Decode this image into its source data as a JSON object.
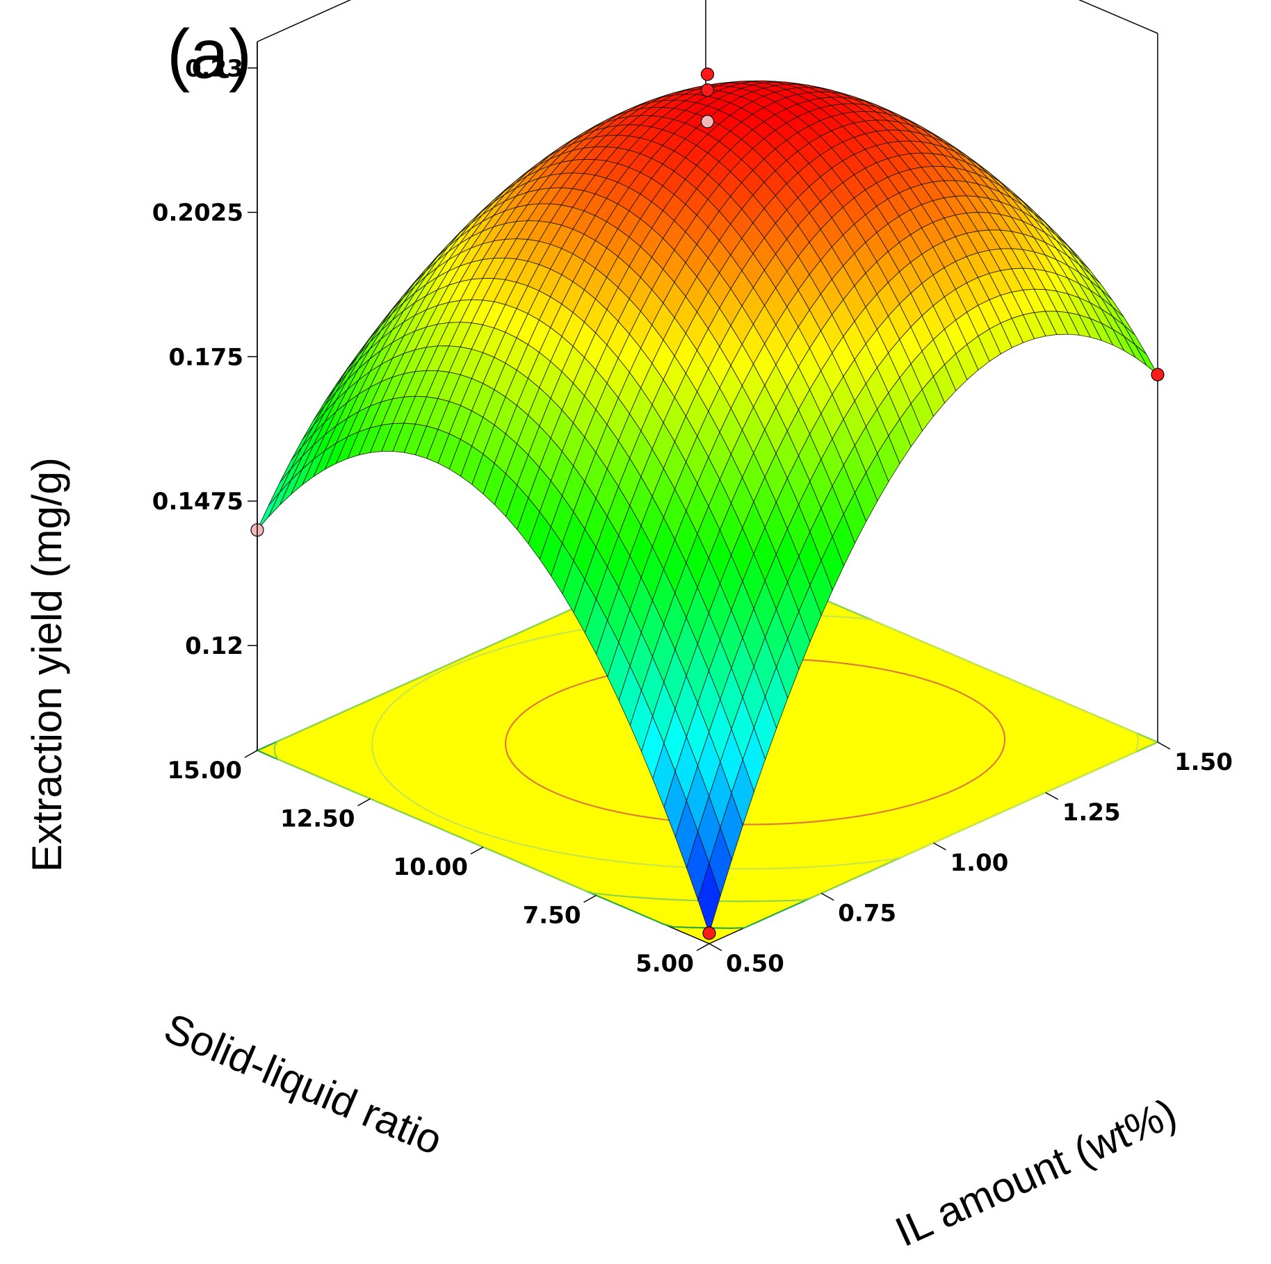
{
  "panel_label": "(a)",
  "chart_data": {
    "type": "surface3d",
    "title": "",
    "zlabel": "Extraction yield (mg/g)",
    "xlabel": "IL amount (wt%)",
    "ylabel": "Solid-liquid ratio",
    "x_ticks": [
      "0.50",
      "0.75",
      "1.00",
      "1.25",
      "1.50"
    ],
    "y_ticks": [
      "5.00",
      "7.50",
      "10.00",
      "12.50",
      "15.00"
    ],
    "z_ticks": [
      "0.12",
      "0.1475",
      "0.175",
      "0.2025",
      "0.23"
    ],
    "xlim": [
      0.5,
      1.5
    ],
    "ylim": [
      5.0,
      15.0
    ],
    "zlim": [
      0.1,
      0.235
    ],
    "grid_resolution": 40,
    "surface_model": "quadratic response surface",
    "surface_peak": {
      "x": 1.0,
      "y": 10.0,
      "z": 0.222
    },
    "surface_corners": [
      {
        "x": 0.5,
        "y": 5.0,
        "z": 0.102
      },
      {
        "x": 1.5,
        "y": 5.0,
        "z": 0.17
      },
      {
        "x": 0.5,
        "y": 15.0,
        "z": 0.142
      },
      {
        "x": 1.5,
        "y": 15.0,
        "z": 0.112
      }
    ],
    "design_points": [
      {
        "x": 0.5,
        "y": 5.0,
        "z": 0.102,
        "color": "#ff1a1a"
      },
      {
        "x": 1.5,
        "y": 5.0,
        "z": 0.17,
        "color": "#ff1a1a"
      },
      {
        "x": 0.5,
        "y": 15.0,
        "z": 0.142,
        "color": "#f4b8b8"
      },
      {
        "x": 1.0,
        "y": 10.0,
        "z": 0.228,
        "color": "#ff1a1a"
      },
      {
        "x": 1.0,
        "y": 10.0,
        "z": 0.225,
        "color": "#ff1a1a"
      },
      {
        "x": 1.0,
        "y": 10.0,
        "z": 0.219,
        "color": "#f4b8b8"
      }
    ],
    "floor_contour_levels": [
      0.12,
      0.1475,
      0.175,
      0.2025
    ],
    "floor_color": "#ffff00",
    "colormap": [
      "#0000ff",
      "#00ffff",
      "#00ff00",
      "#ffff00",
      "#ff0000"
    ]
  }
}
